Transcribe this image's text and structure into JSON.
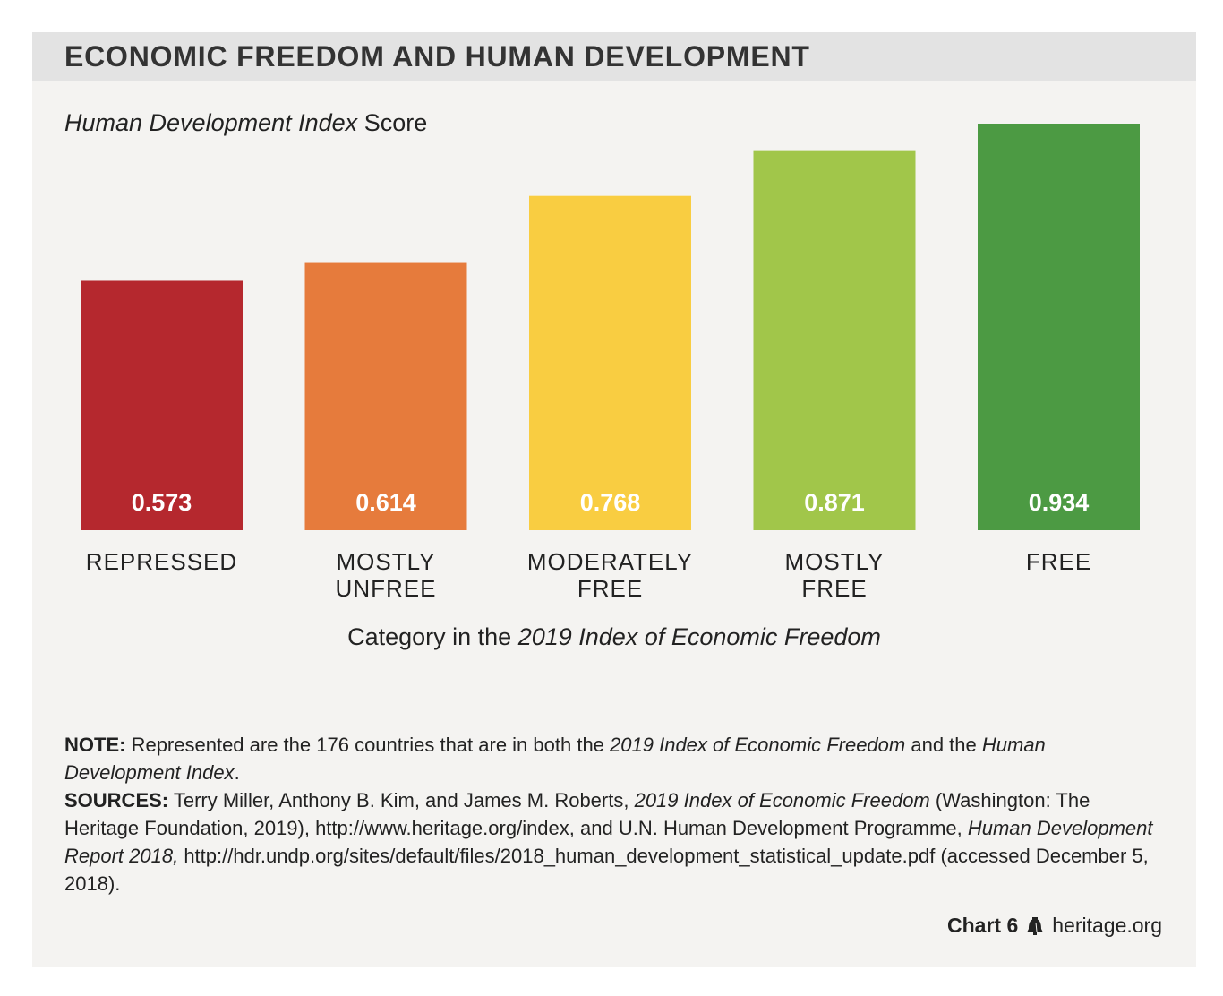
{
  "header": {
    "title": "ECONOMIC FREEDOM AND HUMAN DEVELOPMENT"
  },
  "subtitle": {
    "italic": "Human Development Index",
    "rest": " Score"
  },
  "x_axis_title": {
    "prefix": "Category in the ",
    "italic": "2019 Index of Economic Freedom"
  },
  "chart_data": {
    "type": "bar",
    "title": "ECONOMIC FREEDOM AND HUMAN DEVELOPMENT",
    "ylabel": "Human Development Index Score",
    "xlabel": "Category in the 2019 Index of Economic Freedom",
    "ylim": [
      0.0,
      0.934
    ],
    "grid": false,
    "categories": [
      [
        "REPRESSED"
      ],
      [
        "MOSTLY",
        "UNFREE"
      ],
      [
        "MODERATELY",
        "FREE"
      ],
      [
        "MOSTLY",
        "FREE"
      ],
      [
        "FREE"
      ]
    ],
    "values": [
      0.573,
      0.614,
      0.768,
      0.871,
      0.934
    ],
    "value_labels": [
      "0.573",
      "0.614",
      "0.768",
      "0.871",
      "0.934"
    ],
    "colors": [
      "#b5282e",
      "#e67b3c",
      "#f9cd41",
      "#a1c64a",
      "#4c9a43"
    ]
  },
  "notes": {
    "note_label": "NOTE:",
    "note_text_1": " Represented are the 176 countries that are in both the ",
    "note_italic_1": "2019 Index of Economic Freedom",
    "note_text_2": " and the ",
    "note_italic_2": "Human Development Index",
    "note_text_3": ".",
    "sources_label": "SOURCES:",
    "sources_text_1": " Terry Miller, Anthony B. Kim, and James M. Roberts, ",
    "sources_italic_1": "2019 Index of Economic Freedom",
    "sources_text_2": " (Washington: The Heritage Foundation, 2019), http://www.heritage.org/index, and U.N. Human Development Programme, ",
    "sources_italic_2": "Human Development Report 2018,",
    "sources_text_3": " http://hdr.undp.org/sites/default/files/2018_human_development_statistical_update.pdf (accessed December 5, 2018)."
  },
  "footer": {
    "chart_number": "Chart 6",
    "site": "heritage.org"
  },
  "colors": {
    "panel": "#f4f3f1",
    "header": "#e3e3e3",
    "text": "#222222"
  }
}
